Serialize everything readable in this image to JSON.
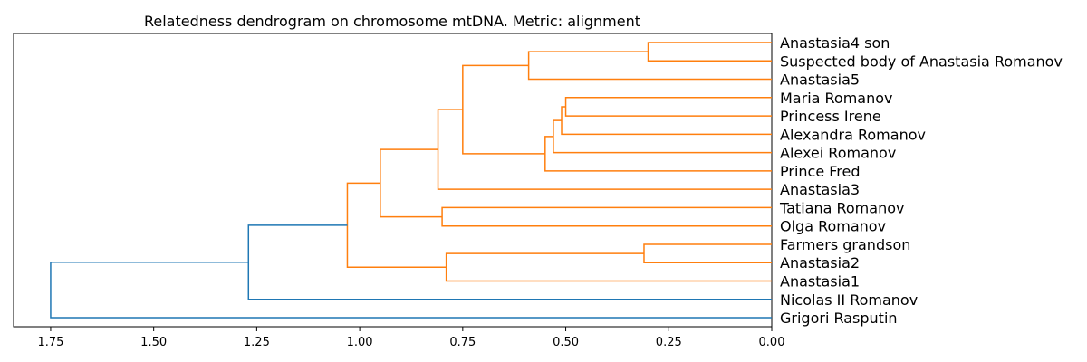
{
  "chart_data": {
    "type": "dendrogram",
    "title": "Relatedness dendrogram on chromosome mtDNA. Metric: alignment",
    "xlabel": "",
    "ylabel": "",
    "orientation": "left",
    "xlim": [
      1.84,
      0.0
    ],
    "xticks": [
      1.75,
      1.5,
      1.25,
      1.0,
      0.75,
      0.5,
      0.25,
      0.0
    ],
    "xtick_labels": [
      "1.75",
      "1.50",
      "1.25",
      "1.00",
      "0.75",
      "0.50",
      "0.25",
      "0.00"
    ],
    "leaves": [
      "Anastasia4 son",
      "Suspected body of Anastasia Romanov",
      "Anastasia5",
      "Maria Romanov",
      "Princess Irene",
      "Alexandra Romanov",
      "Alexei Romanov",
      "Prince Fred",
      "Anastasia3",
      "Tatiana Romanov",
      "Olga Romanov",
      "Farmers grandson",
      "Anastasia2",
      "Anastasia1",
      "Nicolas II Romanov",
      "Grigori Rasputin"
    ],
    "colors": {
      "cluster": "#ff7f0e",
      "above_threshold": "#1f77b4"
    },
    "merges": [
      {
        "id": "c1",
        "a": "L0",
        "b": "L1",
        "height": 0.3,
        "color": "cluster"
      },
      {
        "id": "c2",
        "a": "c1",
        "b": "L2",
        "height": 0.59,
        "color": "cluster"
      },
      {
        "id": "c3",
        "a": "L3",
        "b": "L4",
        "height": 0.5,
        "color": "cluster"
      },
      {
        "id": "c4",
        "a": "c3",
        "b": "L5",
        "height": 0.51,
        "color": "cluster"
      },
      {
        "id": "c5",
        "a": "c4",
        "b": "L6",
        "height": 0.53,
        "color": "cluster"
      },
      {
        "id": "c6",
        "a": "c5",
        "b": "L7",
        "height": 0.55,
        "color": "cluster"
      },
      {
        "id": "c7",
        "a": "c2",
        "b": "c6",
        "height": 0.75,
        "color": "cluster"
      },
      {
        "id": "c8",
        "a": "c7",
        "b": "L8",
        "height": 0.81,
        "color": "cluster"
      },
      {
        "id": "c9",
        "a": "L9",
        "b": "L10",
        "height": 0.8,
        "color": "cluster"
      },
      {
        "id": "c10",
        "a": "c8",
        "b": "c9",
        "height": 0.95,
        "color": "cluster"
      },
      {
        "id": "c11",
        "a": "L11",
        "b": "L12",
        "height": 0.31,
        "color": "cluster"
      },
      {
        "id": "c12",
        "a": "c11",
        "b": "L13",
        "height": 0.79,
        "color": "cluster"
      },
      {
        "id": "c13",
        "a": "c10",
        "b": "c12",
        "height": 1.03,
        "color": "cluster"
      },
      {
        "id": "c14",
        "a": "c13",
        "b": "L14",
        "height": 1.27,
        "color": "above_threshold"
      },
      {
        "id": "c15",
        "a": "c14",
        "b": "L15",
        "height": 1.75,
        "color": "above_threshold"
      }
    ]
  }
}
